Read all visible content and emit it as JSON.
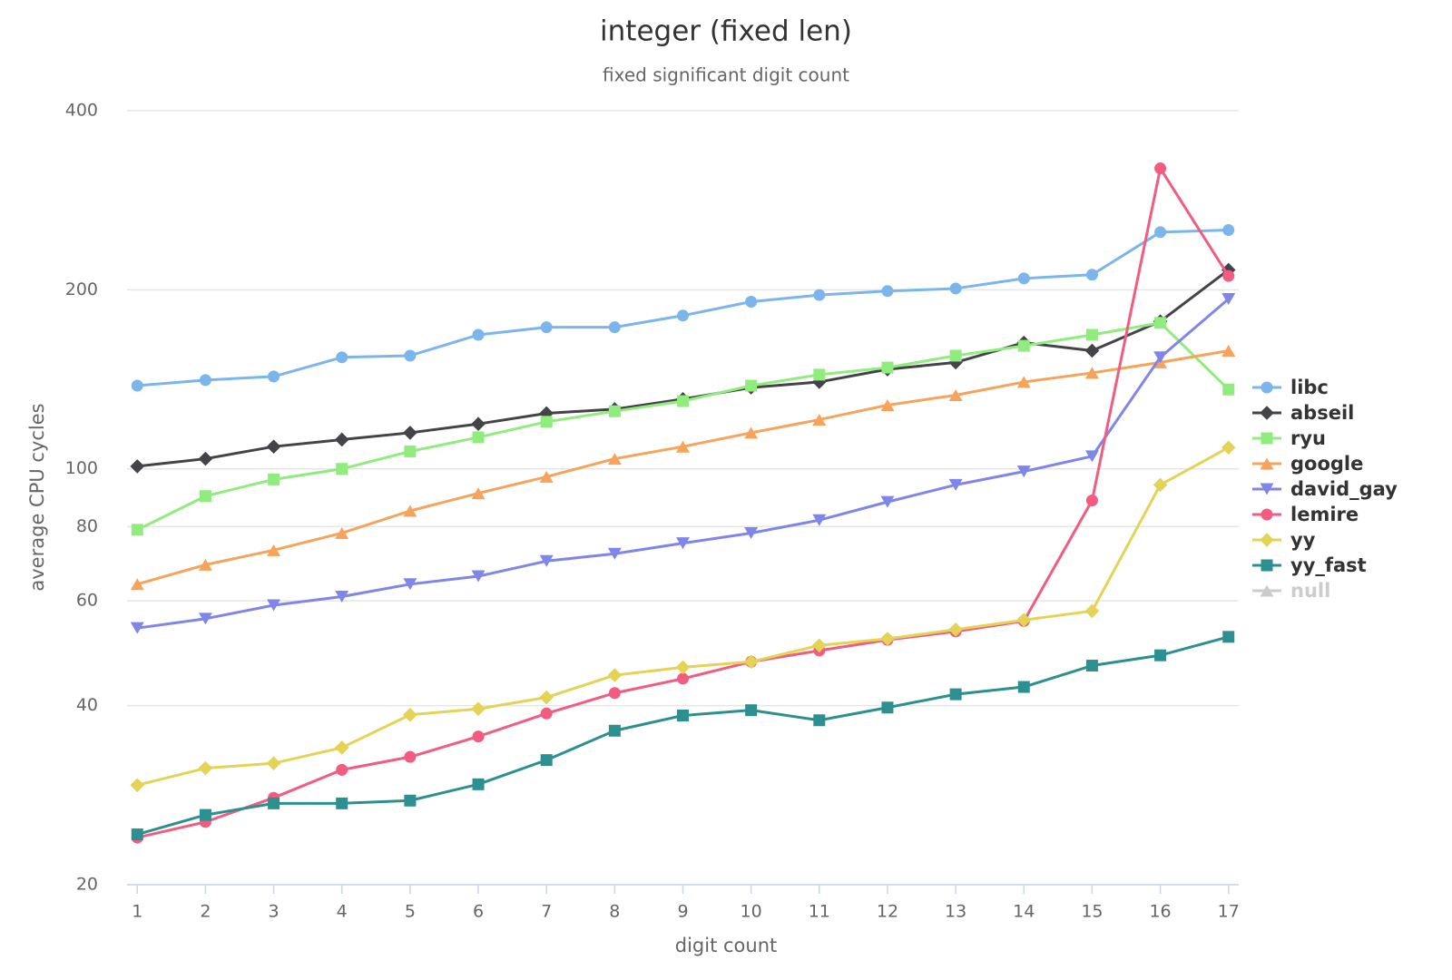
{
  "chart_data": {
    "type": "line",
    "title": "integer (fixed len)",
    "subtitle": "fixed significant digit count",
    "x_label": "digit count",
    "y_label": "average CPU cycles",
    "x": [
      1,
      2,
      3,
      4,
      5,
      6,
      7,
      8,
      9,
      10,
      11,
      12,
      13,
      14,
      15,
      16,
      17
    ],
    "xlim": [
      0.85,
      17.15
    ],
    "xticks": [
      1,
      2,
      3,
      4,
      5,
      6,
      7,
      8,
      9,
      10,
      11,
      12,
      13,
      14,
      15,
      16,
      17
    ],
    "ylim": [
      20,
      400
    ],
    "yticks": [
      20,
      40,
      60,
      80,
      100,
      200,
      400
    ],
    "log_y": true,
    "grid": true,
    "legend": "right",
    "series": [
      {
        "name": "libc",
        "color": "#7cb5ec",
        "marker": "circle",
        "values": [
          138,
          141,
          143,
          154,
          155,
          168,
          173,
          173,
          181,
          191,
          196,
          199,
          201,
          209,
          212,
          250,
          252
        ]
      },
      {
        "name": "abseil",
        "color": "#434348",
        "marker": "diamond",
        "values": [
          101,
          104,
          109,
          112,
          115,
          119,
          124,
          126,
          131,
          137,
          140,
          147,
          151,
          163,
          158,
          177,
          216
        ]
      },
      {
        "name": "ryu",
        "color": "#90ed7d",
        "marker": "square",
        "values": [
          79,
          90,
          96,
          100,
          107,
          113,
          120,
          125,
          130,
          138,
          144,
          148,
          155,
          161,
          168,
          176,
          136
        ]
      },
      {
        "name": "google",
        "color": "#f7a35c",
        "marker": "triangle",
        "values": [
          64,
          69,
          73,
          78,
          85,
          91,
          97,
          104,
          109,
          115,
          121,
          128,
          133,
          140,
          145,
          151,
          158
        ]
      },
      {
        "name": "david_gay",
        "color": "#8085e9",
        "marker": "triangle-down",
        "values": [
          54,
          56,
          59,
          61,
          64,
          66,
          70,
          72,
          75,
          78,
          82,
          88,
          94,
          99,
          105,
          154,
          193
        ]
      },
      {
        "name": "lemire",
        "color": "#f15c80",
        "marker": "circle",
        "values": [
          24,
          25.5,
          28,
          31.2,
          32.8,
          35.5,
          38.8,
          42,
          44.4,
          47.4,
          49.5,
          51.6,
          53.3,
          55.5,
          88.5,
          320,
          211
        ]
      },
      {
        "name": "yy",
        "color": "#e4d354",
        "marker": "diamond",
        "values": [
          29.4,
          31.4,
          32,
          34,
          38.6,
          39.5,
          41.3,
          45,
          46.4,
          47.4,
          50.5,
          51.8,
          53.7,
          55.7,
          57.7,
          94,
          108.6
        ]
      },
      {
        "name": "yy_fast",
        "color": "#2b908f",
        "marker": "square",
        "values": [
          24.3,
          26.2,
          27.4,
          27.4,
          27.7,
          29.5,
          32.4,
          36.3,
          38.5,
          39.3,
          37.8,
          39.7,
          41.8,
          43,
          46.7,
          48.6,
          52.2
        ]
      },
      {
        "name": "null",
        "color": "#cccccc",
        "marker": "triangle",
        "visible": false,
        "values": [
          null,
          null,
          null,
          null,
          null,
          null,
          null,
          null,
          null,
          null,
          null,
          null,
          null,
          null,
          null,
          null,
          null
        ]
      }
    ]
  }
}
